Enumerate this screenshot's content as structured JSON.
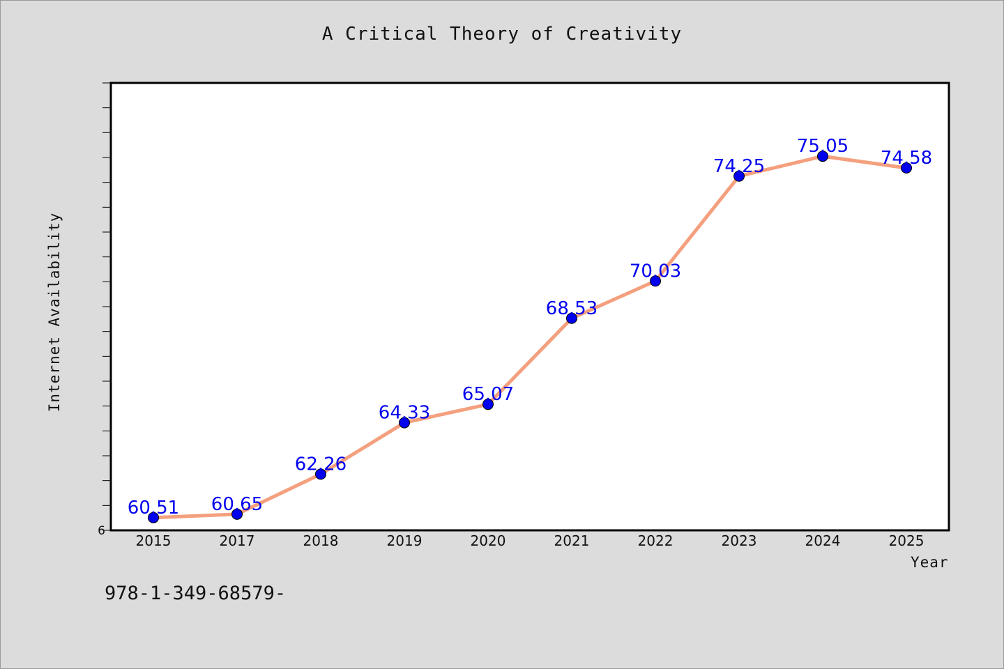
{
  "title": "A Critical Theory of Creativity",
  "footnote": "978-1-349-68579-",
  "colors": {
    "background": "#dcdcdc",
    "plot_background": "#ffffff",
    "line": "#f4a07e",
    "marker": "#0000ee",
    "data_label": "#0000ee"
  },
  "chart_data": {
    "type": "line",
    "title": "A Critical Theory of Creativity",
    "xlabel": "Year",
    "ylabel": "Internet Availability",
    "categories": [
      "2015",
      "2017",
      "2018",
      "2019",
      "2020",
      "2021",
      "2022",
      "2023",
      "2024",
      "2025"
    ],
    "values": [
      60.51,
      60.65,
      62.26,
      64.33,
      65.07,
      68.53,
      70.03,
      74.25,
      75.05,
      74.58
    ],
    "data_labels": [
      "60.51",
      "60.65",
      "62.26",
      "64.33",
      "65.07",
      "68.53",
      "70.03",
      "74.25",
      "75.05",
      "74.58"
    ],
    "ylim": [
      60,
      78
    ],
    "y_tick_labels": [
      "6"
    ],
    "grid": false,
    "legend": "none",
    "marker": "circle"
  }
}
